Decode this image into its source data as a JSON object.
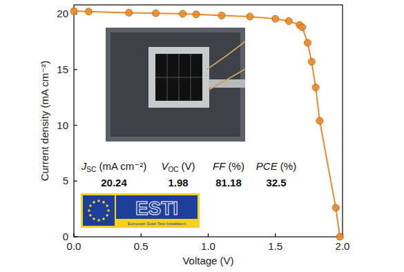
{
  "chart_data": {
    "type": "line",
    "xlabel": "Voltage (V)",
    "ylabel": "Current density (mA cm⁻²)",
    "x": [
      0.0,
      0.11,
      0.41,
      0.61,
      0.81,
      0.91,
      1.1,
      1.31,
      1.5,
      1.6,
      1.68,
      1.7,
      1.74,
      1.77,
      1.8,
      1.83,
      1.95,
      1.98
    ],
    "series": [
      {
        "color": "#e8892a",
        "marker": "circle",
        "line_style": "solid",
        "values": [
          20.24,
          20.2,
          20.1,
          20.05,
          20.0,
          19.95,
          19.85,
          19.75,
          19.55,
          19.35,
          19.0,
          18.8,
          17.4,
          15.7,
          13.4,
          10.4,
          2.6,
          0.0
        ]
      }
    ],
    "xlim": [
      0,
      2.0
    ],
    "ylim": [
      0,
      20.8
    ],
    "xticks": [
      {
        "value": 0,
        "label": "0.0"
      },
      {
        "value": 0.5,
        "label": "0.5"
      },
      {
        "value": 1.0,
        "label": "1.0"
      },
      {
        "value": 1.5,
        "label": "1.5"
      },
      {
        "value": 2.0,
        "label": "2.0"
      }
    ],
    "yticks": [
      0,
      5,
      10,
      15,
      20
    ],
    "grid": false,
    "metrics": [
      {
        "symbol": "J",
        "sub": "SC",
        "unit": "(mA cm⁻²)",
        "value": 20.24
      },
      {
        "symbol": "V",
        "sub": "OC",
        "unit": "(V)",
        "value": 1.98
      },
      {
        "symbol": "FF",
        "sub": "",
        "unit": "(%)",
        "value": 81.18
      },
      {
        "symbol": "PCE",
        "sub": "",
        "unit": "(%)",
        "value": 32.5
      }
    ],
    "logo": {
      "text": "ESTI",
      "caption": "European Solar Test Installation"
    }
  }
}
